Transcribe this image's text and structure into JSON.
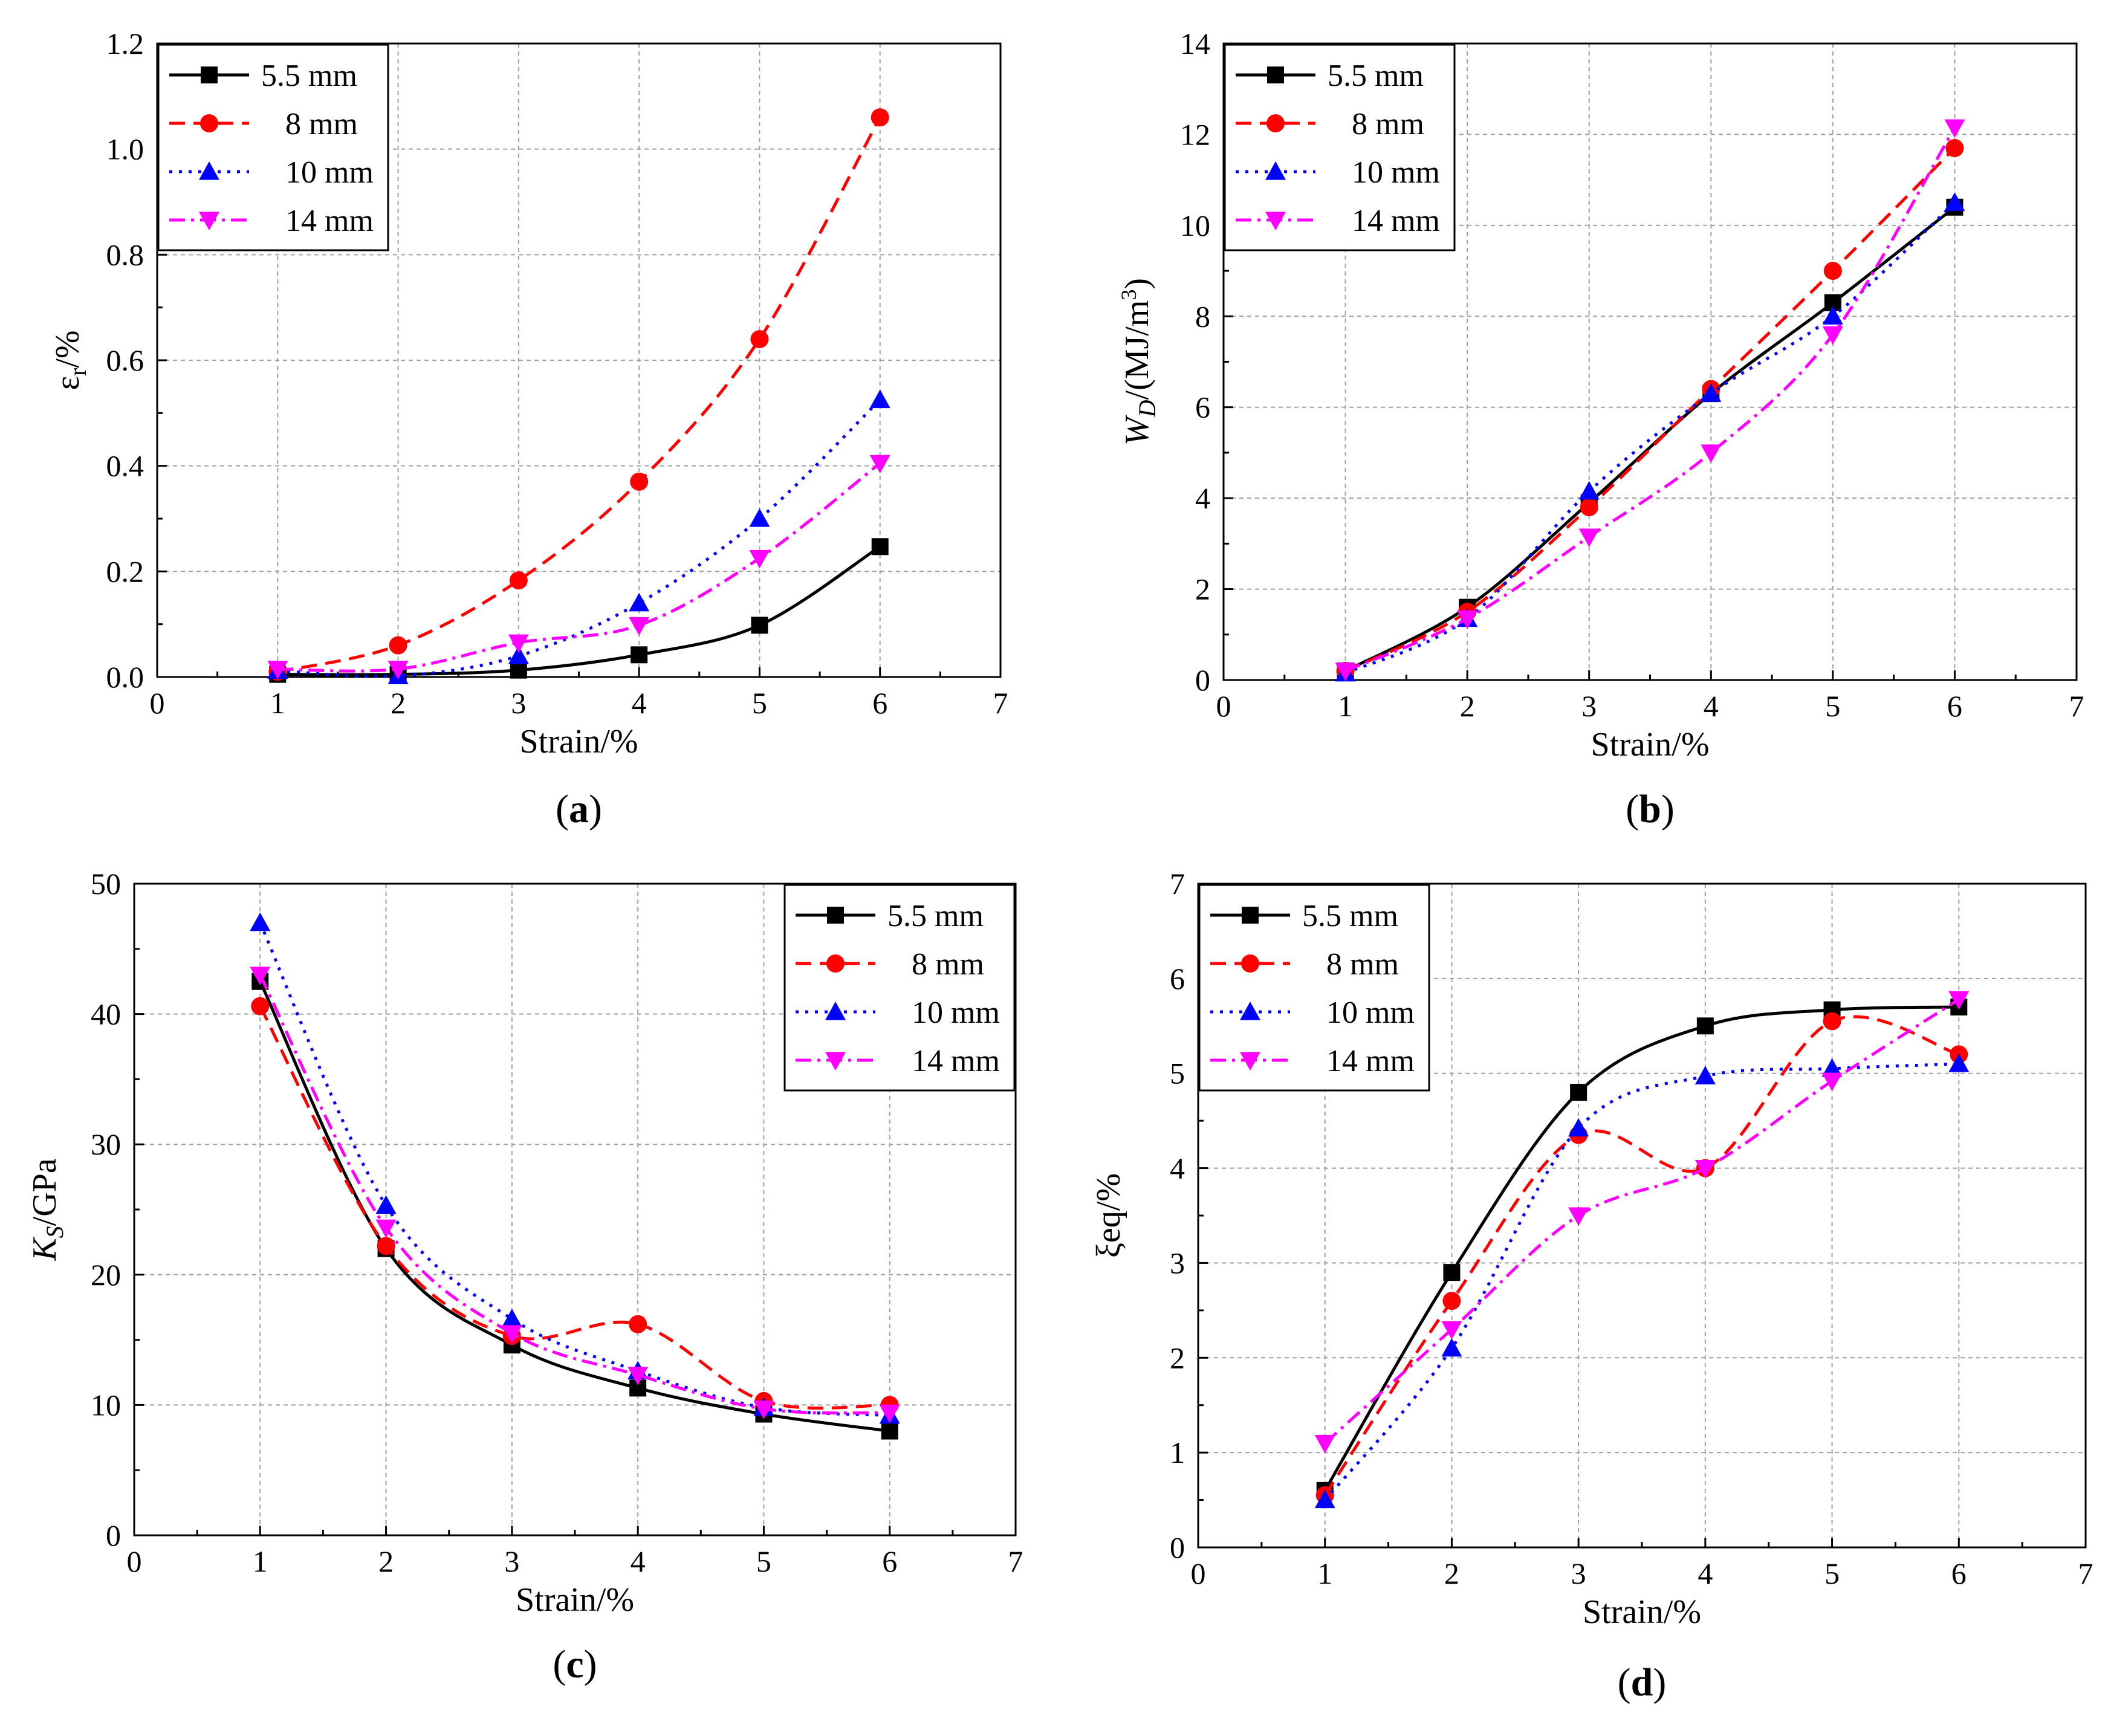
{
  "series_styles": [
    {
      "name": "5.5 mm",
      "color": "#000000",
      "marker": "square",
      "dash": "solid"
    },
    {
      "name": "8 mm",
      "color": "#ff0000",
      "marker": "circle",
      "dash": "dashed"
    },
    {
      "name": "10 mm",
      "color": "#0000ff",
      "marker": "triangle-up",
      "dash": "dotted"
    },
    {
      "name": "14 mm",
      "color": "#ff00ff",
      "marker": "triangle-down",
      "dash": "dashdot"
    }
  ],
  "chart_data": [
    {
      "type": "line",
      "panel_label": "(a)",
      "panel_letter": "a",
      "xlabel": "Strain/%",
      "ylabel": "εr/%",
      "ylabel_main": "ε",
      "ylabel_sub": "r",
      "ylabel_rest": "/%",
      "xlim": [
        0,
        7
      ],
      "ylim": [
        0,
        1.2
      ],
      "xticks": [
        "0",
        "1",
        "2",
        "3",
        "4",
        "5",
        "6",
        "7"
      ],
      "yticks": [
        "0.0",
        "0.2",
        "0.4",
        "0.6",
        "0.8",
        "1.0",
        "1.2"
      ],
      "legend_position": "top-left",
      "grid": true,
      "x": [
        1,
        2,
        3,
        4,
        5,
        6
      ],
      "series": [
        {
          "name": "5.5 mm",
          "values": [
            0.005,
            0.005,
            0.013,
            0.042,
            0.098,
            0.247
          ]
        },
        {
          "name": "8 mm",
          "values": [
            0.01,
            0.06,
            0.183,
            0.37,
            0.64,
            1.06
          ]
        },
        {
          "name": "10 mm",
          "values": [
            0.012,
            0.002,
            0.04,
            0.14,
            0.3,
            0.525
          ]
        },
        {
          "name": "14 mm",
          "values": [
            0.015,
            0.015,
            0.065,
            0.098,
            0.225,
            0.405
          ]
        }
      ]
    },
    {
      "type": "line",
      "panel_label": "(b)",
      "panel_letter": "b",
      "xlabel": "Strain/%",
      "ylabel": "WD/(MJ/m3)",
      "ylabel_main": "W",
      "ylabel_sub": "D",
      "ylabel_rest": "/(MJ/m",
      "ylabel_sup": "3",
      "ylabel_end": ")",
      "xlim": [
        0,
        7
      ],
      "ylim": [
        0,
        14
      ],
      "xticks": [
        "0",
        "1",
        "2",
        "3",
        "4",
        "5",
        "6",
        "7"
      ],
      "yticks": [
        "0",
        "2",
        "4",
        "6",
        "8",
        "10",
        "12",
        "14"
      ],
      "legend_position": "top-left",
      "grid": true,
      "x": [
        1,
        2,
        3,
        4,
        5,
        6
      ],
      "series": [
        {
          "name": "5.5 mm",
          "values": [
            0.2,
            1.6,
            3.9,
            6.3,
            8.3,
            10.4
          ]
        },
        {
          "name": "8 mm",
          "values": [
            0.2,
            1.5,
            3.8,
            6.4,
            9.0,
            11.7
          ]
        },
        {
          "name": "10 mm",
          "values": [
            0.15,
            1.35,
            4.15,
            6.3,
            8.0,
            10.5
          ]
        },
        {
          "name": "14 mm",
          "values": [
            0.2,
            1.35,
            3.15,
            5.0,
            7.6,
            12.15
          ]
        }
      ]
    },
    {
      "type": "line",
      "panel_label": "(c)",
      "panel_letter": "c",
      "xlabel": "Strain/%",
      "ylabel": "KS/GPa",
      "ylabel_main": "K",
      "ylabel_sub": "S",
      "ylabel_rest": "/GPa",
      "xlim": [
        0,
        7
      ],
      "ylim": [
        0,
        50
      ],
      "xticks": [
        "0",
        "1",
        "2",
        "3",
        "4",
        "5",
        "6",
        "7"
      ],
      "yticks": [
        "0",
        "10",
        "20",
        "30",
        "40",
        "50"
      ],
      "legend_position": "top-right",
      "grid": true,
      "x": [
        1,
        2,
        3,
        4,
        5,
        6
      ],
      "series": [
        {
          "name": "5.5 mm",
          "values": [
            42.5,
            22.0,
            14.6,
            11.3,
            9.3,
            8.0
          ]
        },
        {
          "name": "8 mm",
          "values": [
            40.6,
            22.2,
            15.3,
            16.2,
            10.3,
            10.0
          ]
        },
        {
          "name": "10 mm",
          "values": [
            47.0,
            25.3,
            16.6,
            12.6,
            9.8,
            9.2
          ]
        },
        {
          "name": "14 mm",
          "values": [
            43.0,
            23.6,
            15.5,
            12.3,
            9.7,
            9.4
          ]
        }
      ]
    },
    {
      "type": "line",
      "panel_label": "(d)",
      "panel_letter": "d",
      "xlabel": "Strain/%",
      "ylabel": "ξeq/%",
      "ylabel_main": "ξeq/%",
      "xlim": [
        0,
        7
      ],
      "ylim": [
        0,
        7
      ],
      "xticks": [
        "0",
        "1",
        "2",
        "3",
        "4",
        "5",
        "6",
        "7"
      ],
      "yticks": [
        "0",
        "1",
        "2",
        "3",
        "4",
        "5",
        "6",
        "7"
      ],
      "legend_position": "top-left",
      "grid": true,
      "x": [
        1,
        2,
        3,
        4,
        5,
        6
      ],
      "series": [
        {
          "name": "5.5 mm",
          "values": [
            0.6,
            2.9,
            4.8,
            5.5,
            5.67,
            5.7
          ]
        },
        {
          "name": "8 mm",
          "values": [
            0.55,
            2.6,
            4.35,
            4.0,
            5.55,
            5.2
          ]
        },
        {
          "name": "10 mm",
          "values": [
            0.5,
            2.1,
            4.42,
            4.97,
            5.05,
            5.1
          ]
        },
        {
          "name": "14 mm",
          "values": [
            1.1,
            2.3,
            3.5,
            4.0,
            4.92,
            5.78
          ]
        }
      ]
    }
  ]
}
